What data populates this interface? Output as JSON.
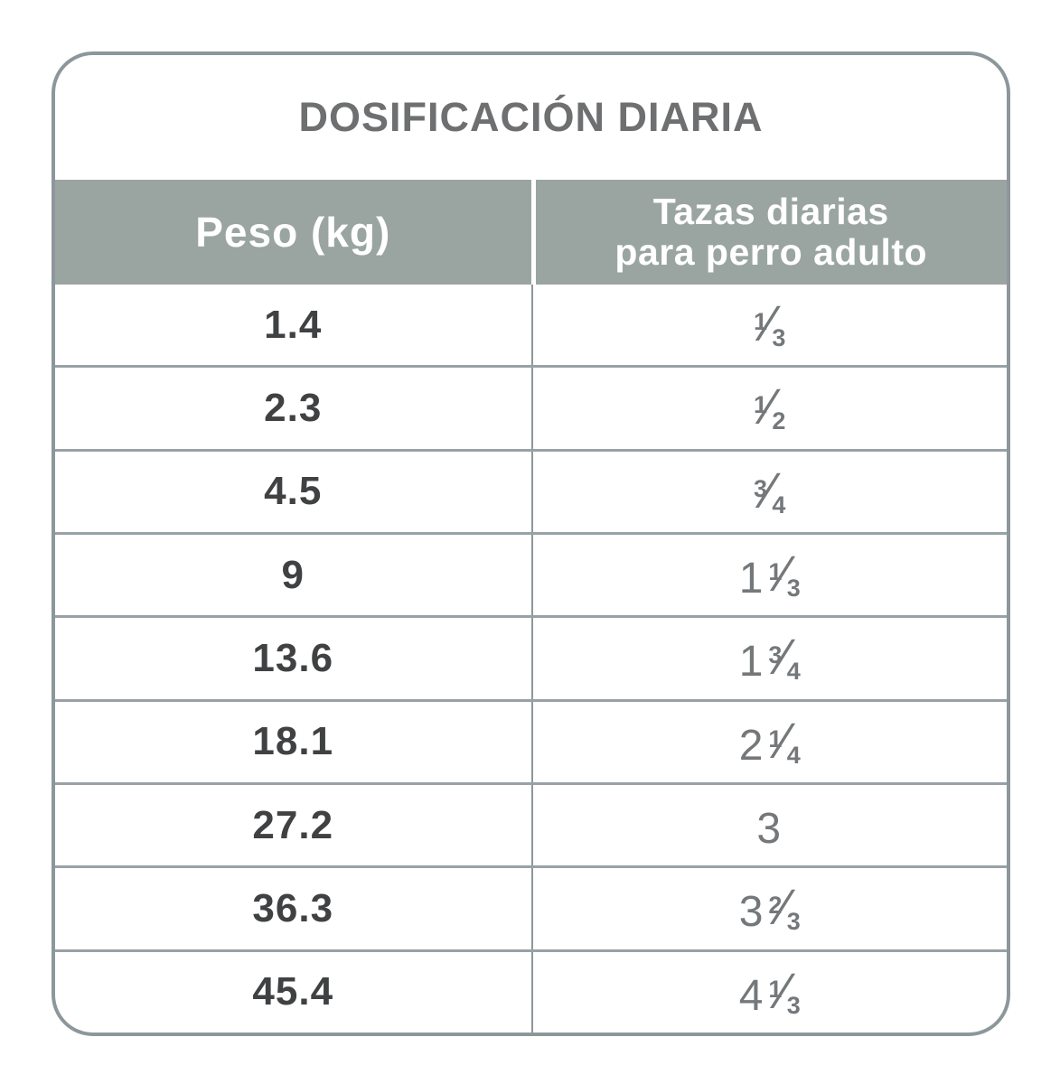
{
  "title": "DOSIFICACIÓN DIARIA",
  "colors": {
    "header_bg": "#9aa5a2",
    "outer_border": "#8d979b",
    "row_divider": "#98a2a6",
    "title_text": "#6e6f70",
    "weight_text": "#3f4142",
    "cups_text": "#74787a",
    "header_text": "#ffffff"
  },
  "table": {
    "columns": [
      {
        "label": "Peso (kg)"
      },
      {
        "label_line1": "Tazas diarias",
        "label_line2": "para perro adulto"
      }
    ],
    "rows": [
      {
        "peso": "1.4",
        "cups": {
          "whole": "",
          "num": "1",
          "slash": "⁄",
          "den": "3"
        }
      },
      {
        "peso": "2.3",
        "cups": {
          "whole": "",
          "num": "1",
          "slash": "⁄",
          "den": "2"
        }
      },
      {
        "peso": "4.5",
        "cups": {
          "whole": "",
          "num": "3",
          "slash": "⁄",
          "den": "4"
        }
      },
      {
        "peso": "9",
        "cups": {
          "whole": "1",
          "num": "1",
          "slash": "⁄",
          "den": "3"
        }
      },
      {
        "peso": "13.6",
        "cups": {
          "whole": "1",
          "num": "3",
          "slash": "⁄",
          "den": "4"
        }
      },
      {
        "peso": "18.1",
        "cups": {
          "whole": "2",
          "num": "1",
          "slash": "⁄",
          "den": "4"
        }
      },
      {
        "peso": "27.2",
        "cups": {
          "whole": "3",
          "num": "",
          "slash": "",
          "den": ""
        }
      },
      {
        "peso": "36.3",
        "cups": {
          "whole": "3",
          "num": "2",
          "slash": "⁄",
          "den": "3"
        }
      },
      {
        "peso": "45.4",
        "cups": {
          "whole": "4",
          "num": "1",
          "slash": "⁄",
          "den": "3"
        }
      }
    ]
  }
}
